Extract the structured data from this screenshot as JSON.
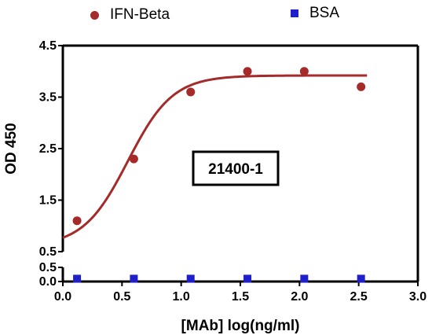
{
  "chart_data": {
    "type": "scatter",
    "xlabel": "[MAb] log(ng/ml)",
    "ylabel": "OD 450",
    "annotation": "21400-1",
    "xlim": [
      0.0,
      3.0
    ],
    "x_ticks": [
      "0.0",
      "0.5",
      "1.0",
      "1.5",
      "2.0",
      "2.5",
      "3.0"
    ],
    "x_tick_values": [
      0.0,
      0.5,
      1.0,
      1.5,
      2.0,
      2.5,
      3.0
    ],
    "y_segments": [
      {
        "range": [
          0.0,
          0.5
        ],
        "ticks": [
          "0.0",
          "0.5"
        ],
        "tick_values": [
          0.0,
          0.5
        ]
      },
      {
        "range": [
          0.5,
          4.5
        ],
        "ticks": [
          "0.5",
          "1.5",
          "2.5",
          "3.5",
          "4.5"
        ],
        "tick_values": [
          0.5,
          1.5,
          2.5,
          3.5,
          4.5
        ]
      }
    ],
    "grid": false,
    "legend_position": "top",
    "series": [
      {
        "name": "IFN-Beta",
        "color": "#a52a2a",
        "marker": "circle",
        "x": [
          0.12,
          0.6,
          1.08,
          1.56,
          2.04,
          2.52
        ],
        "y": [
          1.1,
          2.3,
          3.6,
          4.0,
          4.0,
          3.7
        ],
        "fit": {
          "bottom": 0.6,
          "top": 3.92,
          "logEC50": 0.55,
          "hillslope": 2.3
        }
      },
      {
        "name": "BSA",
        "color": "#1f1fcc",
        "marker": "square",
        "x": [
          0.12,
          0.6,
          1.08,
          1.56,
          2.04,
          2.52
        ],
        "y": [
          0.1,
          0.1,
          0.1,
          0.1,
          0.1,
          0.1
        ]
      }
    ]
  }
}
